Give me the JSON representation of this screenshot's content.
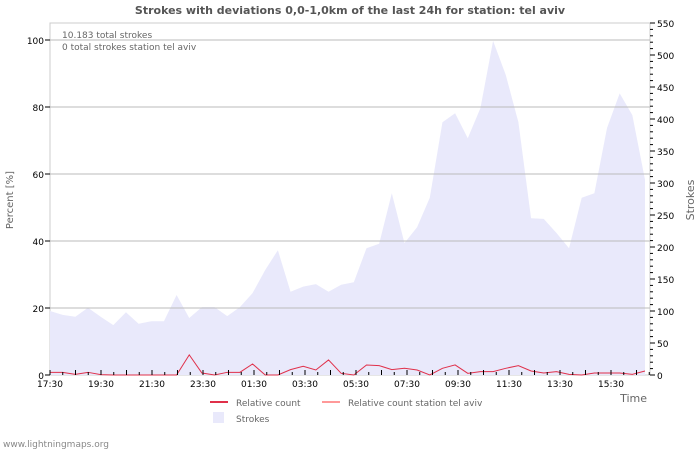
{
  "chart_data": {
    "type": "area",
    "title": "Strokes with deviations 0,0-1,0km of the last 24h for station: tel aviv",
    "ylabel_left": "Percent   [%]",
    "ylabel_right": "Strokes",
    "xlabel": "Time",
    "ylim_left": [
      0,
      100
    ],
    "ylim_right": [
      0,
      550
    ],
    "left_ticks": [
      "0",
      "20",
      "40",
      "60",
      "80",
      "100"
    ],
    "right_ticks": [
      "0",
      "50",
      "100",
      "150",
      "200",
      "250",
      "300",
      "350",
      "400",
      "450",
      "500",
      "550"
    ],
    "x_ticks": [
      "17:30",
      "19:30",
      "21:30",
      "23:30",
      "01:30",
      "03:30",
      "05:30",
      "07:30",
      "09:30",
      "11:30",
      "13:30",
      "15:30"
    ],
    "annotations": [
      "10.183 total strokes",
      "0 total strokes station tel aviv"
    ],
    "legend": [
      "Relative count",
      "Relative count station tel aviv",
      "Strokes"
    ],
    "series": [
      {
        "name": "Strokes",
        "axis": "right",
        "color": "#e9e9fb",
        "values": [
          100,
          94,
          91,
          105,
          91,
          78,
          98,
          80,
          84,
          84,
          125,
          89,
          106,
          106,
          92,
          106,
          128,
          164,
          195,
          130,
          138,
          142,
          130,
          141,
          145,
          198,
          205,
          284,
          206,
          231,
          277,
          395,
          409,
          370,
          417,
          522,
          469,
          395,
          245,
          244,
          222,
          198,
          277,
          284,
          386,
          440,
          406,
          305
        ]
      },
      {
        "name": "Relative count",
        "axis": "left",
        "color": "#e0304a",
        "values": [
          0.8,
          0.8,
          0.2,
          0.8,
          0.1,
          0,
          0,
          0,
          0,
          0,
          0,
          6,
          0.6,
          0,
          0.8,
          0.8,
          3.3,
          0,
          0,
          1.6,
          2.6,
          1.5,
          4.5,
          0.5,
          0,
          3,
          2.8,
          1.6,
          2,
          1.5,
          0,
          2,
          3,
          0.5,
          1,
          1,
          2,
          2.8,
          1.2,
          0.6,
          1,
          0.2,
          0,
          0.6,
          0.6,
          0.6,
          0.2,
          1.2
        ]
      }
    ]
  },
  "footer": "www.lightningmaps.org"
}
